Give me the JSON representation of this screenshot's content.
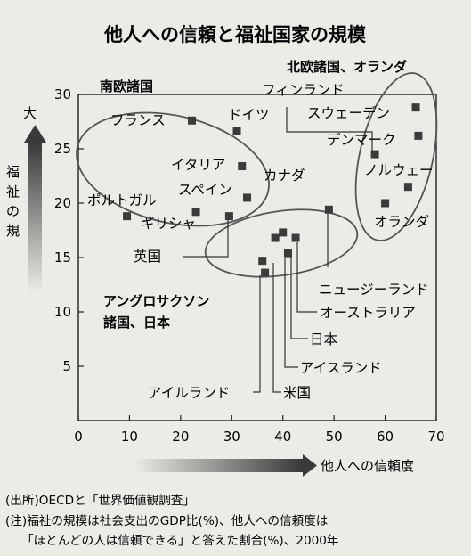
{
  "title": "他人への信頼と福祉国家の規模",
  "source_note": "(出所)OECDと「世界価値観調査」",
  "note_line1": "(注)福祉の規模は社会支出のGDP比(%)、他人への信頼度は",
  "note_line2": "「ほとんどの人は信頼できる」と答えた割合(%)、2000年",
  "chart_data": {
    "type": "scatter",
    "title": "他人への信頼と福祉国家の規模",
    "xlabel": "他人への信頼度",
    "ylabel": "福祉の規模",
    "ylabel_top": "大",
    "xlim": [
      0,
      70
    ],
    "ylim": [
      0,
      30
    ],
    "x_ticks": [
      "0",
      "10",
      "20",
      "30",
      "40",
      "50",
      "60",
      "70"
    ],
    "y_ticks": [
      "5",
      "10",
      "15",
      "20",
      "25",
      "30"
    ],
    "grid": false,
    "groups": [
      {
        "name": "南欧諸国"
      },
      {
        "name": "北欧諸国、オランダ"
      },
      {
        "name": "アングロサクソン諸国、日本",
        "name_line1": "アングロサクソン",
        "name_line2": "諸国、日本"
      }
    ],
    "points": [
      {
        "label": "フランス",
        "x": 22.2,
        "y": 27.6
      },
      {
        "label": "ドイツ",
        "x": 31.0,
        "y": 26.6
      },
      {
        "label": "イタリア",
        "x": 32.0,
        "y": 23.4
      },
      {
        "label": "スペイン",
        "x": 33.0,
        "y": 20.5
      },
      {
        "label": "ポルトガル",
        "x": 9.5,
        "y": 18.8
      },
      {
        "label": "ギリシャ",
        "x": 23.0,
        "y": 19.2
      },
      {
        "label": "英国",
        "x": 29.5,
        "y": 18.8
      },
      {
        "label": "フィンランド",
        "x": 58.0,
        "y": 24.5
      },
      {
        "label": "スウェーデン",
        "x": 66.0,
        "y": 28.8
      },
      {
        "label": "デンマーク",
        "x": 66.5,
        "y": 26.2
      },
      {
        "label": "ノルウェー",
        "x": 64.5,
        "y": 21.5
      },
      {
        "label": "オランダ",
        "x": 60.0,
        "y": 20.0
      },
      {
        "label": "カナダ",
        "x": 38.5,
        "y": 16.8
      },
      {
        "label": "ニュージーランド",
        "x": 49.0,
        "y": 19.4
      },
      {
        "label": "オーストラリア",
        "x": 40.0,
        "y": 17.3
      },
      {
        "label": "日本",
        "x": 42.5,
        "y": 16.8
      },
      {
        "label": "アイスランド",
        "x": 41.0,
        "y": 15.4
      },
      {
        "label": "米国",
        "x": 36.0,
        "y": 14.7
      },
      {
        "label": "アイルランド",
        "x": 36.5,
        "y": 13.6
      }
    ]
  }
}
